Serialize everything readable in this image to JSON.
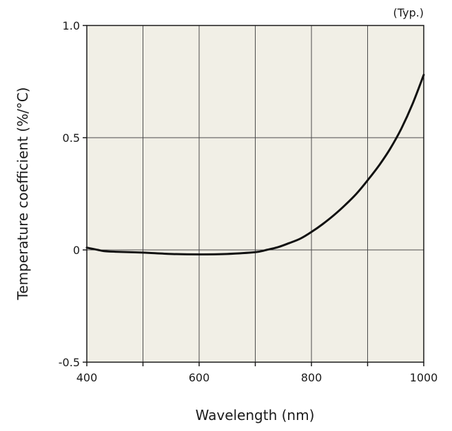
{
  "chart_data": {
    "type": "line",
    "title": "",
    "note": "(Typ.)",
    "xlabel": "Wavelength (nm)",
    "ylabel": "Temperature coefficient (%/°C)",
    "xlim": [
      400,
      1000
    ],
    "ylim": [
      -0.5,
      1.0
    ],
    "x_ticks": [
      400,
      500,
      600,
      700,
      800,
      900,
      1000
    ],
    "x_tick_labels": [
      "400",
      "",
      "600",
      "",
      "800",
      "",
      "1000"
    ],
    "y_ticks": [
      -0.5,
      0,
      0.5,
      1.0
    ],
    "y_tick_labels": [
      "-0.5",
      "0",
      "0.5",
      "1.0"
    ],
    "grid": true,
    "colors": {
      "plot_background": "#f1efe6",
      "line": "#111111",
      "grid": "#4a4a4a"
    },
    "series": [
      {
        "x": [
          400,
          410,
          420,
          430,
          450,
          500,
          550,
          600,
          650,
          700,
          720,
          740,
          760,
          780,
          800,
          820,
          840,
          860,
          880,
          900,
          920,
          940,
          960,
          980,
          1000
        ],
        "y": [
          0.01,
          0.005,
          0.0,
          -0.005,
          -0.008,
          -0.012,
          -0.018,
          -0.02,
          -0.018,
          -0.01,
          0.0,
          0.012,
          0.03,
          0.05,
          0.08,
          0.115,
          0.155,
          0.2,
          0.25,
          0.31,
          0.375,
          0.45,
          0.54,
          0.65,
          0.78
        ]
      }
    ]
  }
}
